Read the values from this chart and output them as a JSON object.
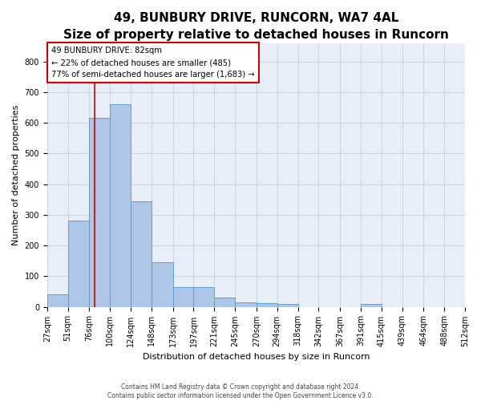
{
  "title1": "49, BUNBURY DRIVE, RUNCORN, WA7 4AL",
  "title2": "Size of property relative to detached houses in Runcorn",
  "xlabel": "Distribution of detached houses by size in Runcorn",
  "ylabel": "Number of detached properties",
  "bins": [
    27,
    51,
    76,
    100,
    124,
    148,
    173,
    197,
    221,
    245,
    270,
    294,
    318,
    342,
    367,
    391,
    415,
    439,
    464,
    488,
    512
  ],
  "bar_heights": [
    40,
    280,
    615,
    660,
    345,
    145,
    65,
    65,
    30,
    15,
    12,
    10,
    0,
    0,
    0,
    10,
    0,
    0,
    0,
    0
  ],
  "bar_color": "#aec6e8",
  "bar_edge_color": "#5a9fd4",
  "grid_color": "#c8d4e4",
  "background_color": "#e8eef8",
  "property_size": 82,
  "property_line_color": "#cc0000",
  "annotation_text": "49 BUNBURY DRIVE: 82sqm\n← 22% of detached houses are smaller (485)\n77% of semi-detached houses are larger (1,683) →",
  "annotation_box_color": "#ffffff",
  "annotation_box_edge": "#cc0000",
  "footer_text": "Contains HM Land Registry data © Crown copyright and database right 2024.\nContains public sector information licensed under the Open Government Licence v3.0.",
  "ylim": [
    0,
    860
  ],
  "yticks": [
    0,
    100,
    200,
    300,
    400,
    500,
    600,
    700,
    800
  ],
  "title1_fontsize": 11,
  "title2_fontsize": 9,
  "xlabel_fontsize": 8,
  "ylabel_fontsize": 8,
  "tick_fontsize": 7,
  "footer_fontsize": 5.5
}
